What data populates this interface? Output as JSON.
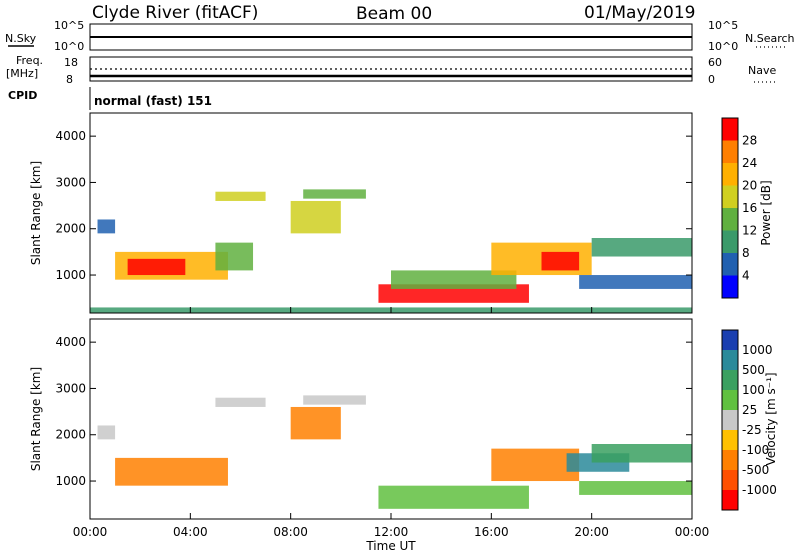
{
  "header": {
    "station": "Clyde River (fitACF)",
    "beam": "Beam 00",
    "date": "01/May/2019"
  },
  "nsky_panel": {
    "left_label": "N.Sky",
    "right_label": "N.Search",
    "left_ticks": [
      "10^5",
      "10^0"
    ],
    "right_ticks": [
      "10^5",
      "10^0"
    ]
  },
  "freq_panel": {
    "left_label_1": "Freq.",
    "left_label_2": "[MHz]",
    "right_label": "Nave",
    "left_ticks": [
      "18",
      "8"
    ],
    "right_ticks": [
      "60",
      "0"
    ]
  },
  "cpid_panel": {
    "label": "CPID",
    "value": "normal (fast) 151"
  },
  "x_axis": {
    "label": "Time UT",
    "ticks": [
      "00:00",
      "04:00",
      "08:00",
      "12:00",
      "16:00",
      "20:00",
      "00:00"
    ]
  },
  "y_axis": {
    "label": "Slant Range [km]",
    "ticks": [
      "4000",
      "3000",
      "2000",
      "1000"
    ]
  },
  "power_bar": {
    "label": "Power [dB]",
    "ticks": [
      "28",
      "24",
      "20",
      "16",
      "12",
      "8",
      "4"
    ],
    "colors": [
      "#ff0000",
      "#ff7f00",
      "#ffb000",
      "#cfcf20",
      "#60b040",
      "#3a9a6a",
      "#2060b0",
      "#0000ff"
    ]
  },
  "velocity_bar": {
    "label": "Velocity [m s⁻¹]",
    "ticks": [
      "1000",
      "500",
      "100",
      "25",
      "-25",
      "-100",
      "-500",
      "-1000"
    ],
    "colors": [
      "#1a3fb0",
      "#2a8a9a",
      "#3aa060",
      "#60c040",
      "#c8c8c8",
      "#ffc000",
      "#ff8000",
      "#ff5000",
      "#ff0000"
    ]
  },
  "chart_data": {
    "type": "heatmap",
    "title": "Clyde River (fitACF) Beam 00 01/May/2019",
    "xlabel": "Time UT",
    "ylabel": "Slant Range [km]",
    "xlim_hours": [
      0,
      24
    ],
    "ylim_km": [
      180,
      4500
    ],
    "panels": [
      {
        "name": "Power [dB]",
        "clim": [
          0,
          30
        ],
        "regions": [
          {
            "t0": 0.3,
            "t1": 1.0,
            "r0": 1900,
            "r1": 2200,
            "value": 6
          },
          {
            "t0": 1.0,
            "t1": 5.5,
            "r0": 900,
            "r1": 1500,
            "value": 20
          },
          {
            "t0": 1.5,
            "t1": 3.8,
            "r0": 1000,
            "r1": 1350,
            "value": 27
          },
          {
            "t0": 5.0,
            "t1": 7.0,
            "r0": 2600,
            "r1": 2800,
            "value": 16
          },
          {
            "t0": 5.0,
            "t1": 6.5,
            "r0": 1100,
            "r1": 1700,
            "value": 14
          },
          {
            "t0": 8.0,
            "t1": 10.0,
            "r0": 1900,
            "r1": 2600,
            "value": 18
          },
          {
            "t0": 8.5,
            "t1": 11.0,
            "r0": 2650,
            "r1": 2850,
            "value": 14
          },
          {
            "t0": 11.5,
            "t1": 17.5,
            "r0": 400,
            "r1": 800,
            "value": 28
          },
          {
            "t0": 12.0,
            "t1": 17.0,
            "r0": 700,
            "r1": 1100,
            "value": 12
          },
          {
            "t0": 16.0,
            "t1": 20.0,
            "r0": 1000,
            "r1": 1700,
            "value": 20
          },
          {
            "t0": 18.0,
            "t1": 19.5,
            "r0": 1100,
            "r1": 1500,
            "value": 29
          },
          {
            "t0": 19.5,
            "t1": 24.0,
            "r0": 700,
            "r1": 1000,
            "value": 6
          },
          {
            "t0": 20.0,
            "t1": 24.0,
            "r0": 1400,
            "r1": 1800,
            "value": 8
          },
          {
            "t0": 0.0,
            "t1": 24.0,
            "r0": 180,
            "r1": 300,
            "value": 10
          }
        ]
      },
      {
        "name": "Velocity [m s⁻¹]",
        "clim": [
          -1000,
          1000
        ],
        "regions": [
          {
            "t0": 0.3,
            "t1": 1.0,
            "r0": 1900,
            "r1": 2200,
            "value": 0
          },
          {
            "t0": 1.0,
            "t1": 5.5,
            "r0": 900,
            "r1": 1500,
            "value": -300
          },
          {
            "t0": 5.0,
            "t1": 7.0,
            "r0": 2600,
            "r1": 2800,
            "value": 0
          },
          {
            "t0": 8.0,
            "t1": 10.0,
            "r0": 1900,
            "r1": 2600,
            "value": -200
          },
          {
            "t0": 8.5,
            "t1": 11.0,
            "r0": 2650,
            "r1": 2850,
            "value": 0
          },
          {
            "t0": 11.5,
            "t1": 17.5,
            "r0": 400,
            "r1": 900,
            "value": 80
          },
          {
            "t0": 16.0,
            "t1": 19.5,
            "r0": 1000,
            "r1": 1700,
            "value": -200
          },
          {
            "t0": 19.0,
            "t1": 21.5,
            "r0": 1200,
            "r1": 1600,
            "value": 600
          },
          {
            "t0": 20.0,
            "t1": 24.0,
            "r0": 1400,
            "r1": 1800,
            "value": 400
          },
          {
            "t0": 19.5,
            "t1": 24.0,
            "r0": 700,
            "r1": 1000,
            "value": 80
          }
        ]
      }
    ]
  }
}
